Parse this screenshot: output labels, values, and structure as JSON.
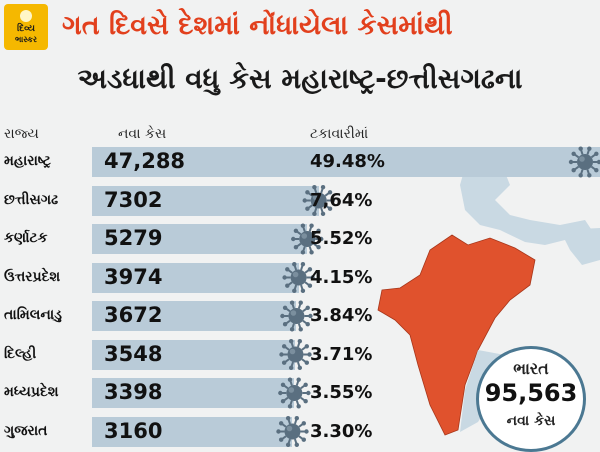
{
  "logo": {
    "line1": "દિવ્ય",
    "line2": "ભાસ્કર"
  },
  "title_line1": "ગત દિવસે દેશમાં નોંધાયેલા કેસમાંથી",
  "title_line2": "અડધાથી વધુ કેસ મહારાષ્ટ્ર-છત્તીસગઢના",
  "headers": {
    "state": "રાજ્ય",
    "cases": "નવા કેસ",
    "percent": "ટકાવારીમાં"
  },
  "colors": {
    "accent": "#e2401d",
    "bar": "#b9cbd8",
    "map_highlight": "#e0522d",
    "map_base": "#c9d9e3",
    "virus": "#5a6f80"
  },
  "total": {
    "label_top": "ભારત",
    "value": "95,563",
    "label_bottom": "નવા કેસ"
  },
  "chart_data": {
    "type": "bar",
    "categories": [
      "મહારાષ્ટ્ર",
      "છત્તીસગઢ",
      "કર્ણાટક",
      "ઉત્તરપ્રદેશ",
      "તામિલનાડુ",
      "દિલ્હી",
      "મધ્યપ્રદેશ",
      "ગુજરાત"
    ],
    "values": [
      47288,
      7302,
      5279,
      3974,
      3672,
      3548,
      3398,
      3160
    ],
    "value_labels": [
      "47,288",
      "7302",
      "5279",
      "3974",
      "3672",
      "3548",
      "3398",
      "3160"
    ],
    "percent_labels": [
      "49.48%",
      "7,64%",
      "5.52%",
      "4.15%",
      "3.84%",
      "3.71%",
      "3.55%",
      "3.30%"
    ],
    "title": "",
    "xlabel": "",
    "ylabel": ""
  }
}
